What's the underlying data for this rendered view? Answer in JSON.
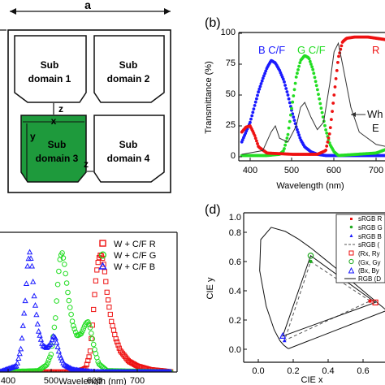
{
  "panel_a": {
    "dimension_label": "a",
    "z_label_top": "z",
    "x_label": "x",
    "y_label": "y",
    "z_label_side": "z",
    "subdomains": [
      {
        "line1": "Sub",
        "line2": "domain 1",
        "fill": "#ffffff"
      },
      {
        "line1": "Sub",
        "line2": "domain 2",
        "fill": "#ffffff"
      },
      {
        "line1": "Sub",
        "line2": "domain 3",
        "fill": "#1e9a3c"
      },
      {
        "line1": "Sub",
        "line2": "domain 4",
        "fill": "#ffffff"
      }
    ]
  },
  "panel_b": {
    "label": "(b)",
    "ylabel": "Transmittance (%)",
    "xlabel": "Wavelength (nm)",
    "yticks": [
      "0",
      "25",
      "50",
      "75",
      "100"
    ],
    "xticks": [
      "400",
      "500",
      "600",
      "700"
    ],
    "annotations": [
      {
        "text": "B C/F",
        "color": "#1a1aff"
      },
      {
        "text": "G C/F",
        "color": "#22dd22"
      },
      {
        "text": "R",
        "color": "#ee1111"
      },
      {
        "text": "Wh",
        "color": "#111111"
      },
      {
        "text": "E",
        "color": "#111111"
      }
    ]
  },
  "panel_c": {
    "xlabel": "Wavelength (nm)",
    "xticks": [
      "400",
      "500",
      "600",
      "700"
    ],
    "legend": [
      {
        "text": "W + C/F R",
        "color": "#ee1111",
        "marker": "square"
      },
      {
        "text": "W + C/F G",
        "color": "#22dd22",
        "marker": "circle"
      },
      {
        "text": "W + C/F B",
        "color": "#1a1aff",
        "marker": "triangle"
      }
    ]
  },
  "panel_d": {
    "label": "(d)",
    "ylabel": "CIE y",
    "xlabel": "CIE x",
    "yticks": [
      "0.0",
      "0.2",
      "0.4",
      "0.6",
      "0.8",
      "1.0"
    ],
    "xticks": [
      "0.0",
      "0.2",
      "0.4",
      "0.6"
    ],
    "legend": [
      {
        "text": "sRGB R",
        "color": "#ee1111"
      },
      {
        "text": "sRGB G",
        "color": "#22aa22"
      },
      {
        "text": "sRGB B",
        "color": "#1a1aff"
      },
      {
        "text": "sRGB (",
        "color": "#555555"
      },
      {
        "text": "(Rx, Ry",
        "color": "#ee1111"
      },
      {
        "text": "(Gx, Gy",
        "color": "#22aa22"
      },
      {
        "text": "(Bx, By",
        "color": "#1a1aff"
      },
      {
        "text": "RGB (D",
        "color": "#111111"
      }
    ]
  },
  "chart_data": [
    {
      "type": "line",
      "panel": "b",
      "xlabel": "Wavelength (nm)",
      "ylabel": "Transmittance (%)",
      "xlim": [
        380,
        770
      ],
      "ylim": [
        0,
        100
      ],
      "series": [
        {
          "name": "B C/F",
          "color": "#1a1aff",
          "x": [
            380,
            400,
            420,
            430,
            440,
            450,
            460,
            470,
            480,
            490,
            500,
            510,
            520,
            530,
            545,
            560,
            580,
            600,
            700,
            770
          ],
          "y": [
            12,
            28,
            53,
            63,
            72,
            78,
            76,
            70,
            62,
            50,
            36,
            24,
            14,
            8,
            4,
            2,
            1,
            1,
            1,
            1
          ]
        },
        {
          "name": "G C/F",
          "color": "#22dd22",
          "x": [
            380,
            440,
            470,
            480,
            490,
            500,
            510,
            520,
            530,
            540,
            550,
            560,
            570,
            580,
            590,
            600,
            610,
            700,
            740,
            770
          ],
          "y": [
            1,
            1,
            2,
            5,
            18,
            42,
            65,
            78,
            82,
            80,
            70,
            55,
            38,
            22,
            10,
            4,
            1,
            3,
            8,
            12
          ]
        },
        {
          "name": "R",
          "color": "#ee1111",
          "x": [
            380,
            390,
            400,
            410,
            420,
            440,
            500,
            560,
            580,
            590,
            600,
            610,
            620,
            630,
            650,
            680,
            720,
            770
          ],
          "y": [
            20,
            24,
            25,
            18,
            8,
            3,
            2,
            2,
            5,
            20,
            50,
            80,
            93,
            96,
            97,
            97,
            95,
            93
          ]
        },
        {
          "name": "White",
          "color": "#333333",
          "x": [
            380,
            430,
            450,
            460,
            470,
            490,
            510,
            520,
            530,
            545,
            560,
            575,
            590,
            600,
            610,
            620,
            640,
            660,
            700,
            770
          ],
          "y": [
            2,
            5,
            20,
            25,
            15,
            12,
            25,
            40,
            44,
            32,
            22,
            28,
            60,
            85,
            92,
            75,
            40,
            20,
            10,
            5
          ]
        }
      ]
    },
    {
      "type": "scatter",
      "panel": "c",
      "xlabel": "Wavelength (nm)",
      "xlim": [
        380,
        780
      ],
      "ylim": [
        0,
        1
      ],
      "series": [
        {
          "name": "W + C/F R",
          "color": "#ee1111",
          "marker": "square",
          "x": [
            380,
            560,
            580,
            590,
            595,
            600,
            605,
            610,
            615,
            620,
            625,
            630,
            640,
            650,
            660,
            680,
            700,
            730,
            760,
            780
          ],
          "y": [
            0,
            0,
            0.03,
            0.15,
            0.35,
            0.6,
            0.82,
            0.94,
            0.98,
            0.94,
            0.82,
            0.65,
            0.42,
            0.28,
            0.18,
            0.09,
            0.05,
            0.02,
            0.01,
            0
          ]
        },
        {
          "name": "W + C/F G",
          "color": "#22dd22",
          "marker": "circle",
          "x": [
            380,
            470,
            490,
            500,
            510,
            515,
            520,
            525,
            530,
            540,
            550,
            560,
            570,
            580,
            585,
            590,
            600,
            610,
            630,
            780
          ],
          "y": [
            0,
            0.01,
            0.06,
            0.15,
            0.45,
            0.72,
            0.93,
            1.0,
            0.92,
            0.62,
            0.4,
            0.3,
            0.32,
            0.4,
            0.42,
            0.38,
            0.2,
            0.07,
            0.01,
            0
          ]
        },
        {
          "name": "W + C/F B",
          "color": "#1a1aff",
          "marker": "triangle",
          "x": [
            380,
            420,
            430,
            440,
            445,
            450,
            455,
            460,
            470,
            480,
            490,
            500,
            505,
            510,
            520,
            530,
            550,
            570,
            600,
            780
          ],
          "y": [
            0,
            0.05,
            0.2,
            0.6,
            0.88,
            1.0,
            0.9,
            0.65,
            0.35,
            0.22,
            0.2,
            0.24,
            0.3,
            0.28,
            0.14,
            0.06,
            0.02,
            0.01,
            0,
            0
          ]
        }
      ]
    },
    {
      "type": "scatter",
      "panel": "d",
      "xlabel": "CIE x",
      "ylabel": "CIE y",
      "xlim": [
        -0.1,
        0.8
      ],
      "ylim": [
        -0.05,
        1.0
      ],
      "spectral_locus": {
        "x": [
          0.175,
          0.172,
          0.166,
          0.144,
          0.124,
          0.091,
          0.045,
          0.008,
          0.014,
          0.074,
          0.155,
          0.23,
          0.302,
          0.373,
          0.444,
          0.512,
          0.575,
          0.627,
          0.66,
          0.68,
          0.692,
          0.713,
          0.735
        ],
        "y": [
          0.005,
          0.005,
          0.009,
          0.03,
          0.058,
          0.133,
          0.295,
          0.538,
          0.75,
          0.834,
          0.806,
          0.754,
          0.692,
          0.624,
          0.555,
          0.487,
          0.425,
          0.373,
          0.34,
          0.32,
          0.308,
          0.287,
          0.265
        ]
      },
      "series": [
        {
          "name": "sRGB",
          "color": "#555555",
          "dashed": true,
          "x": [
            0.64,
            0.3,
            0.15
          ],
          "y": [
            0.33,
            0.6,
            0.06
          ]
        },
        {
          "name": "RGB",
          "color": "#111111",
          "dashed": false,
          "x": [
            0.67,
            0.3,
            0.14
          ],
          "y": [
            0.32,
            0.64,
            0.09
          ]
        }
      ]
    }
  ]
}
